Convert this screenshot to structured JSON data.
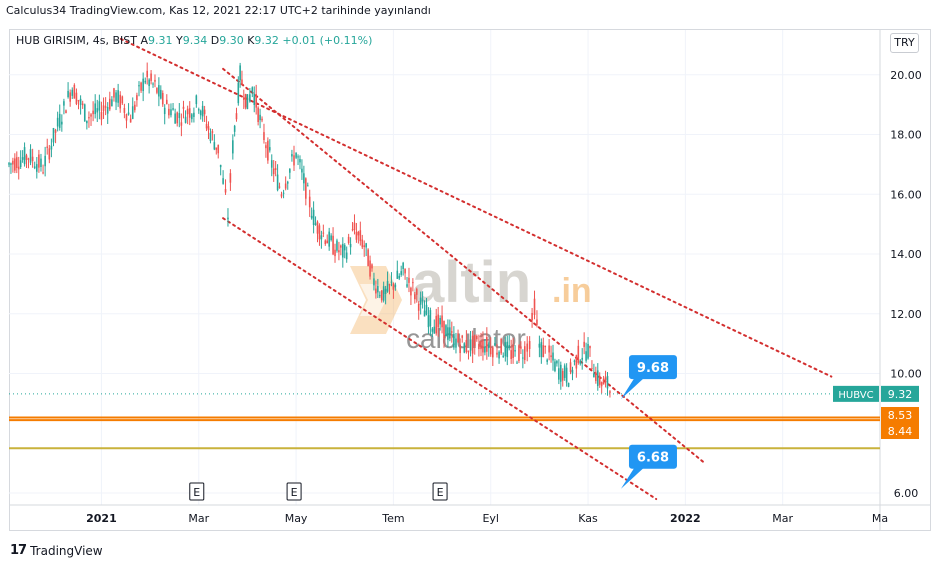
{
  "header": {
    "published_line": "Calculus34 TradingView.com, Kas 12, 2021 22:17 UTC+2 tarihinde yayınlandı"
  },
  "legend": {
    "symbol": "HUB GIRISIM, 4s, BIST",
    "open_label": "A",
    "open": "9.31",
    "high_label": "Y",
    "high": "9.34",
    "low_label": "D",
    "low": "9.30",
    "close_label": "K",
    "close": "9.32",
    "change": "+0.01 (+0.11%)"
  },
  "currency_button": "TRY",
  "watermark": {
    "brand_main": "altin",
    "brand_suffix": ".in",
    "brand_sub": "calculator"
  },
  "footer": {
    "logo": "17",
    "brand": "TradingView"
  },
  "colors": {
    "up": "#26a69a",
    "down": "#ef5350",
    "channel": "#d32f2f",
    "orange": "#f57c00",
    "yellow": "#c9b23b",
    "callout": "#2196f3"
  },
  "chart_data": {
    "type": "candlestick-line",
    "x_ticks": [
      "2021",
      "Mar",
      "May",
      "Tem",
      "Eyl",
      "Kas",
      "2022",
      "Mar",
      "Ma"
    ],
    "x_tick_pos": [
      0.0,
      2.0,
      4.0,
      6.0,
      8.0,
      10.0,
      12.0,
      14.0,
      16.0
    ],
    "xlim": [
      -1.9,
      16.0
    ],
    "y_ticks": [
      "20.00",
      "18.00",
      "16.00",
      "14.00",
      "12.00",
      "10.00",
      "6.00"
    ],
    "y_tick_vals": [
      20,
      18,
      16,
      14,
      12,
      10,
      6
    ],
    "ylim": [
      5.6,
      21.5
    ],
    "price_path": [
      [
        -1.9,
        17.0
      ],
      [
        -1.5,
        17.3
      ],
      [
        -1.2,
        16.9
      ],
      [
        -0.9,
        18.3
      ],
      [
        -0.6,
        19.6
      ],
      [
        -0.3,
        18.6
      ],
      [
        0.0,
        18.8
      ],
      [
        0.3,
        19.3
      ],
      [
        0.6,
        18.6
      ],
      [
        0.9,
        19.9
      ],
      [
        1.1,
        19.6
      ],
      [
        1.3,
        19.0
      ],
      [
        1.6,
        18.6
      ],
      [
        1.9,
        18.9
      ],
      [
        2.0,
        19.1
      ],
      [
        2.2,
        18.2
      ],
      [
        2.4,
        17.5
      ],
      [
        2.5,
        16.4
      ],
      [
        2.6,
        15.3
      ],
      [
        2.7,
        17.6
      ],
      [
        2.85,
        20.0
      ],
      [
        3.0,
        19.0
      ],
      [
        3.1,
        19.6
      ],
      [
        3.3,
        18.2
      ],
      [
        3.5,
        17.0
      ],
      [
        3.7,
        16.1
      ],
      [
        4.0,
        17.4
      ],
      [
        4.2,
        16.2
      ],
      [
        4.4,
        15.0
      ],
      [
        4.6,
        14.6
      ],
      [
        4.8,
        14.2
      ],
      [
        5.0,
        14.0
      ],
      [
        5.2,
        14.8
      ],
      [
        5.4,
        14.3
      ],
      [
        5.6,
        13.1
      ],
      [
        5.8,
        12.6
      ],
      [
        6.0,
        13.0
      ],
      [
        6.2,
        13.4
      ],
      [
        6.4,
        12.8
      ],
      [
        6.6,
        12.2
      ],
      [
        6.8,
        11.7
      ],
      [
        7.0,
        11.6
      ],
      [
        7.2,
        11.2
      ],
      [
        7.5,
        10.9
      ],
      [
        7.8,
        11.0
      ],
      [
        8.0,
        10.9
      ],
      [
        8.3,
        10.8
      ],
      [
        8.5,
        10.6
      ],
      [
        8.7,
        10.8
      ],
      [
        8.8,
        11.1
      ],
      [
        8.9,
        12.3
      ],
      [
        9.0,
        10.9
      ],
      [
        9.2,
        10.6
      ],
      [
        9.4,
        10.1
      ],
      [
        9.6,
        9.9
      ],
      [
        9.8,
        10.6
      ],
      [
        10.0,
        10.8
      ],
      [
        10.2,
        9.8
      ],
      [
        10.4,
        9.6
      ],
      [
        10.5,
        9.32
      ]
    ],
    "events": [
      {
        "label": "E",
        "x": 2.0
      },
      {
        "label": "E",
        "x": 4.0
      },
      {
        "label": "E",
        "x": 7.0
      }
    ],
    "channel_lines": [
      {
        "name": "upper",
        "from": [
          0.4,
          21.2
        ],
        "to": [
          15.0,
          9.9
        ]
      },
      {
        "name": "middle",
        "from": [
          2.5,
          20.2
        ],
        "to": [
          12.4,
          7.0
        ]
      },
      {
        "name": "lower",
        "from": [
          2.5,
          15.2
        ],
        "to": [
          11.4,
          5.8
        ]
      }
    ],
    "horizontal_levels": [
      {
        "value": 8.53,
        "label": "8.53",
        "color": "#f57c00"
      },
      {
        "value": 8.44,
        "label": "8.44",
        "color": "#f57c00"
      },
      {
        "value": 7.5,
        "label": "",
        "color": "#c9b23b"
      }
    ],
    "callouts": [
      {
        "label": "9.68",
        "x": 10.8,
        "y": 9.68
      },
      {
        "label": "6.68",
        "x": 10.8,
        "y": 6.68
      }
    ],
    "last_price": {
      "symbol": "HUBVC",
      "value": "9.32",
      "y": 9.32
    }
  }
}
